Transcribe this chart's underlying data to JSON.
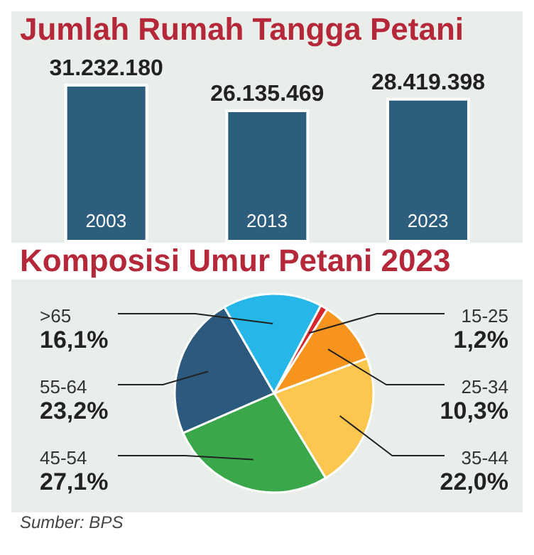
{
  "chart_data": [
    {
      "type": "bar",
      "title": "Jumlah Rumah Tangga Petani",
      "categories": [
        "2003",
        "2013",
        "2023"
      ],
      "values": [
        31232180,
        26135469,
        28419398
      ],
      "value_labels": [
        "31.232.180",
        "26.135.469",
        "28.419.398"
      ],
      "color": "#2d5e7e"
    },
    {
      "type": "pie",
      "title": "Komposisi Umur Petani 2023",
      "categories": [
        "15-25",
        "25-34",
        "35-44",
        "45-54",
        "55-64",
        ">65"
      ],
      "values": [
        1.2,
        10.3,
        22.0,
        27.1,
        23.2,
        16.1
      ],
      "value_labels": [
        "1,2%",
        "10,3%",
        "22,0%",
        "27,1%",
        "23,2%",
        "16,1%"
      ],
      "colors": [
        "#d6262e",
        "#f7941d",
        "#fdc64e",
        "#3aa84a",
        "#2b5a7e",
        "#27b6e8"
      ],
      "annotations": [
        "Sumber: BPS"
      ]
    }
  ]
}
